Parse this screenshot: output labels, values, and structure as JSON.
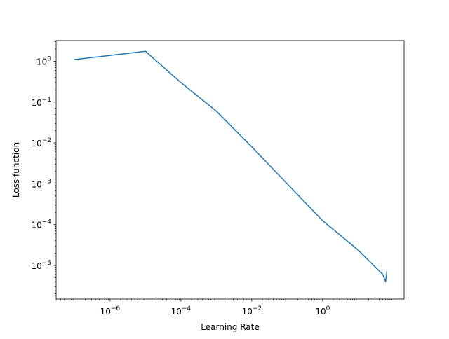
{
  "chart_data": {
    "type": "line",
    "title": "",
    "xlabel": "Learning Rate",
    "ylabel": "Loss function",
    "xscale": "log",
    "yscale": "log",
    "xlim": [
      3e-08,
      200
    ],
    "ylim": [
      1.5e-06,
      3.2
    ],
    "grid": false,
    "legend": "none",
    "line_color": "#1f77b4",
    "x_ticks": [
      {
        "value": 1e-06,
        "base": "10",
        "exp": "−6"
      },
      {
        "value": 0.0001,
        "base": "10",
        "exp": "−4"
      },
      {
        "value": 0.01,
        "base": "10",
        "exp": "−2"
      },
      {
        "value": 1,
        "base": "10",
        "exp": "0"
      }
    ],
    "y_ticks": [
      {
        "value": 1,
        "base": "10",
        "exp": "0"
      },
      {
        "value": 0.1,
        "base": "10",
        "exp": "−1"
      },
      {
        "value": 0.01,
        "base": "10",
        "exp": "−2"
      },
      {
        "value": 0.001,
        "base": "10",
        "exp": "−3"
      },
      {
        "value": 0.0001,
        "base": "10",
        "exp": "−4"
      },
      {
        "value": 1e-05,
        "base": "10",
        "exp": "−5"
      }
    ],
    "series": [
      {
        "x": [
          1e-07,
          1e-05,
          0.0001,
          0.001,
          0.01,
          0.1,
          1,
          10,
          50,
          60,
          65
        ],
        "y": [
          1.1,
          1.75,
          0.3,
          0.06,
          0.008,
          0.001,
          0.000125,
          2.4e-05,
          6e-06,
          4e-06,
          7e-06
        ]
      }
    ]
  }
}
